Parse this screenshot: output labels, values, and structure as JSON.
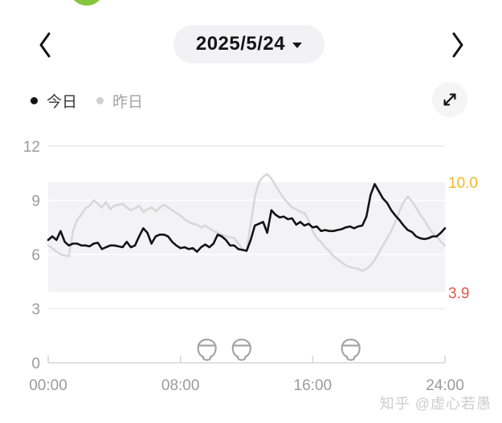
{
  "header": {
    "date_label": "2025/5/24"
  },
  "legend": {
    "today_label": "今日",
    "yesterday_label": "昨日"
  },
  "colors": {
    "today_line": "#141414",
    "yesterday_line": "#d8d8d8",
    "band_fill": "#f3f3f5",
    "gridline": "#ececec",
    "baseline": "#d7d7d9",
    "axis_text": "#9b9b9b",
    "upper_limit_label": "#f2b824",
    "lower_limit_label": "#e25749",
    "meal_icon": "#a3a3a3",
    "accent_green": "#86c53e"
  },
  "chart_data": {
    "type": "line",
    "title": "",
    "xlabel": "",
    "ylabel": "",
    "x_unit": "hours",
    "x_start": 0,
    "x_step": 0.25,
    "xlim_hours": [
      0,
      24
    ],
    "ylim": [
      0,
      12
    ],
    "y_ticks": [
      0,
      3,
      6,
      9,
      12
    ],
    "x_tick_hours": [
      0,
      8,
      16,
      24
    ],
    "x_tick_labels": [
      "00:00",
      "08:00",
      "16:00",
      "24:00"
    ],
    "grid": "horizontal",
    "legend_position": "top-left",
    "target_range": {
      "lower": 3.9,
      "upper": 10.0,
      "lower_label": "3.9",
      "upper_label": "10.0"
    },
    "series": [
      {
        "name": "今日",
        "color": "#141414",
        "values": [
          6.8,
          7.0,
          6.8,
          7.3,
          6.7,
          6.5,
          6.6,
          6.6,
          6.5,
          6.5,
          6.45,
          6.6,
          6.65,
          6.3,
          6.4,
          6.5,
          6.5,
          6.45,
          6.4,
          6.7,
          6.4,
          6.5,
          7.0,
          7.45,
          7.2,
          6.6,
          7.0,
          7.1,
          7.1,
          7.0,
          6.7,
          6.5,
          6.35,
          6.4,
          6.3,
          6.35,
          6.15,
          6.4,
          6.55,
          6.4,
          6.6,
          7.1,
          7.0,
          6.8,
          6.5,
          6.5,
          6.3,
          6.25,
          6.2,
          6.8,
          7.6,
          7.7,
          7.8,
          7.2,
          8.45,
          8.2,
          8.05,
          8.1,
          7.95,
          8.0,
          7.65,
          7.8,
          7.6,
          7.7,
          7.5,
          7.55,
          7.3,
          7.35,
          7.3,
          7.3,
          7.35,
          7.4,
          7.5,
          7.55,
          7.45,
          7.55,
          7.6,
          8.1,
          9.3,
          9.9,
          9.5,
          9.1,
          8.85,
          8.45,
          8.15,
          7.9,
          7.6,
          7.35,
          7.25,
          7.0,
          6.9,
          6.85,
          6.9,
          7.0,
          7.0,
          7.2,
          7.45
        ]
      },
      {
        "name": "昨日",
        "color": "#d8d8d8",
        "values": [
          6.5,
          6.35,
          6.15,
          6.0,
          5.95,
          5.9,
          7.3,
          7.9,
          8.2,
          8.55,
          8.7,
          9.0,
          8.8,
          8.6,
          8.9,
          8.5,
          8.7,
          8.75,
          8.8,
          8.6,
          8.45,
          8.55,
          8.7,
          8.35,
          8.5,
          8.6,
          8.4,
          8.6,
          8.75,
          8.6,
          8.45,
          8.3,
          8.15,
          7.95,
          7.8,
          7.7,
          7.65,
          7.5,
          7.6,
          7.45,
          7.3,
          7.2,
          7.1,
          7.0,
          6.95,
          6.9,
          6.6,
          6.3,
          6.2,
          7.7,
          9.2,
          10.0,
          10.3,
          10.45,
          10.2,
          9.8,
          9.45,
          9.1,
          8.85,
          8.6,
          8.5,
          8.35,
          8.3,
          7.9,
          7.3,
          6.9,
          6.7,
          6.4,
          6.2,
          5.9,
          5.75,
          5.55,
          5.4,
          5.3,
          5.25,
          5.2,
          5.1,
          5.2,
          5.4,
          5.7,
          6.1,
          6.5,
          6.9,
          7.3,
          7.8,
          8.4,
          8.9,
          9.2,
          8.95,
          8.6,
          8.2,
          7.9,
          7.5,
          7.2,
          7.0,
          6.7,
          6.5
        ]
      }
    ],
    "meal_markers": {
      "icon": "meal-bowl",
      "hours": [
        9.6,
        11.7,
        18.3
      ]
    }
  },
  "watermark": "知乎 @虚心若愚"
}
